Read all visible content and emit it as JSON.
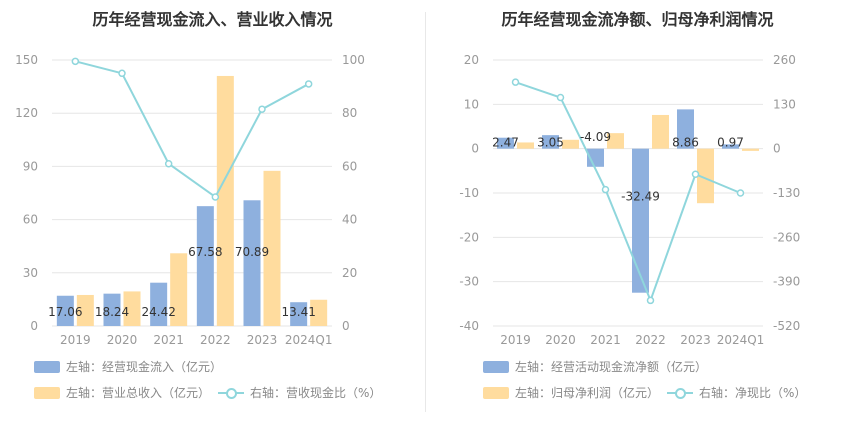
{
  "colors": {
    "bar1": "#8eb0de",
    "bar2": "#ffdc9e",
    "line": "#8fd6dc",
    "grid": "#e6e6e6"
  },
  "left": {
    "title": "历年经营现金流入、营业收入情况",
    "legend": {
      "bar1": "左轴：经营现金流入（亿元）",
      "bar2": "左轴：营业总收入（亿元）",
      "line": "右轴：营收现金比（%）"
    }
  },
  "right": {
    "title": "历年经营现金流净额、归母净利润情况",
    "legend": {
      "bar1": "左轴：经营活动现金流净额（亿元）",
      "bar2": "左轴：归母净利润（亿元）",
      "line": "右轴：净现比（%）"
    }
  },
  "chart_data": [
    {
      "type": "bar",
      "title": "历年经营现金流入、营业收入情况",
      "categories": [
        "2019",
        "2020",
        "2021",
        "2022",
        "2023",
        "2024Q1"
      ],
      "series": [
        {
          "name": "左轴：经营现金流入（亿元）",
          "axis": "left",
          "type": "bar",
          "values": [
            17.06,
            18.24,
            24.42,
            67.58,
            70.89,
            13.41
          ],
          "labels": [
            "17.06",
            "18.24",
            "24.42",
            "67.58",
            "70.89",
            "13.41"
          ]
        },
        {
          "name": "左轴：营业总收入（亿元）",
          "axis": "left",
          "type": "bar",
          "values": [
            17.5,
            19.5,
            41,
            141,
            87.5,
            14.8
          ]
        },
        {
          "name": "右轴：营收现金比（%）",
          "axis": "right",
          "type": "line",
          "values": [
            99.5,
            95,
            61,
            48.5,
            81.5,
            91
          ]
        }
      ],
      "yleft": {
        "ylim": [
          0,
          150
        ],
        "ticks": [
          0,
          30,
          60,
          90,
          120,
          150
        ]
      },
      "yright": {
        "ylim": [
          0,
          100
        ],
        "ticks": [
          0,
          20,
          40,
          60,
          80,
          100
        ]
      },
      "legend_position": "bottom",
      "grid": true
    },
    {
      "type": "bar",
      "title": "历年经营现金流净额、归母净利润情况",
      "categories": [
        "2019",
        "2020",
        "2021",
        "2022",
        "2023",
        "2024Q1"
      ],
      "series": [
        {
          "name": "左轴：经营活动现金流净额（亿元）",
          "axis": "left",
          "type": "bar",
          "values": [
            2.47,
            3.05,
            -4.09,
            -32.49,
            8.86,
            0.97
          ],
          "labels": [
            "2.47",
            "3.05",
            "-4.09",
            "-32.49",
            "8.86",
            "0.97"
          ]
        },
        {
          "name": "左轴：归母净利润（亿元）",
          "axis": "left",
          "type": "bar",
          "values": [
            1.4,
            2.0,
            3.5,
            7.6,
            -12.3,
            -0.5
          ]
        },
        {
          "name": "右轴：净现比（%）",
          "axis": "right",
          "type": "line",
          "values": [
            195,
            150,
            -120,
            -445,
            -75,
            -130
          ]
        }
      ],
      "yleft": {
        "ylim": [
          -40,
          20
        ],
        "ticks": [
          -40,
          -30,
          -20,
          -10,
          0,
          10,
          20
        ]
      },
      "yright": {
        "ylim": [
          -520,
          260
        ],
        "ticks": [
          -520,
          -390,
          -260,
          -130,
          0,
          130,
          260
        ]
      },
      "legend_position": "bottom",
      "grid": true
    }
  ]
}
